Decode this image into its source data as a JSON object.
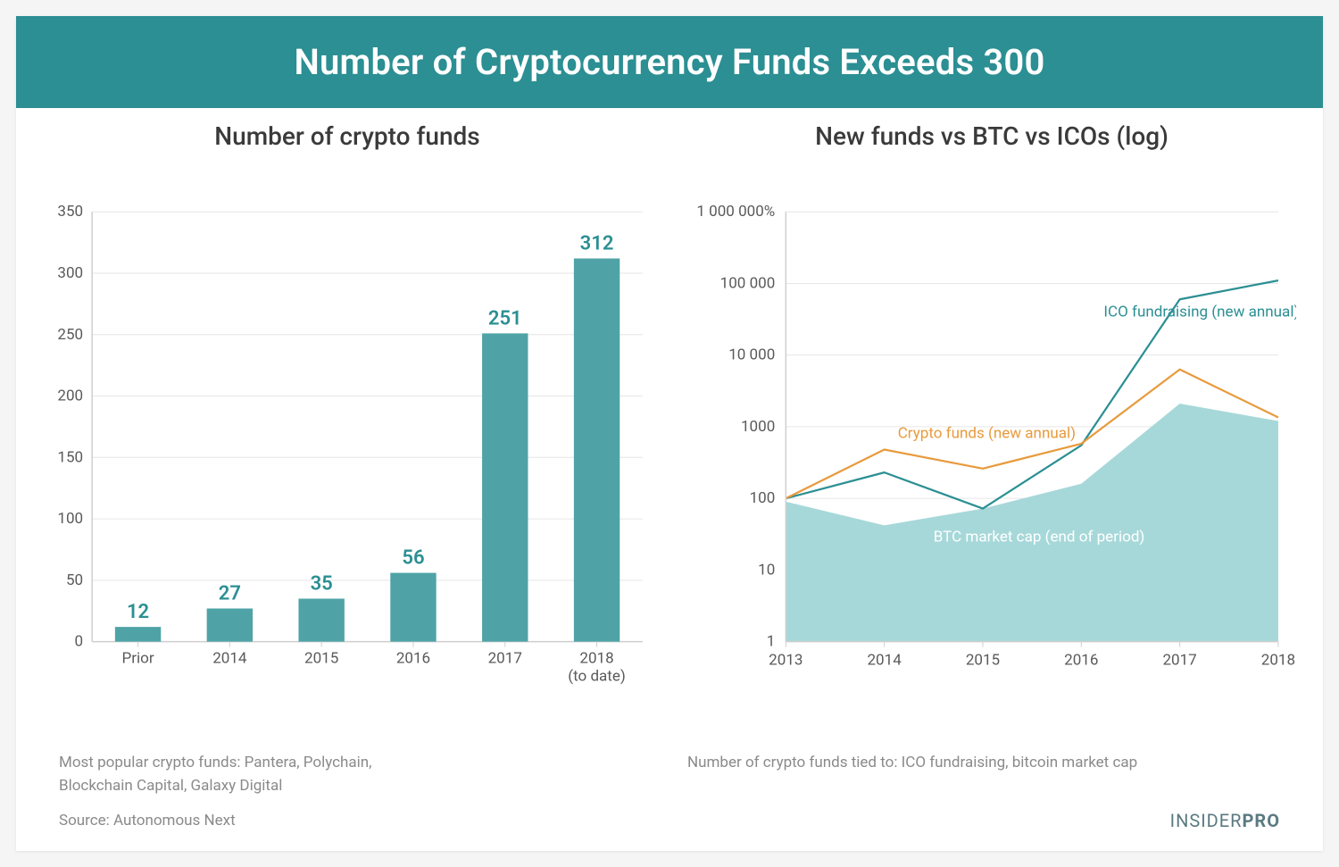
{
  "header": {
    "title": "Number of Cryptocurrency Funds Exceeds 300",
    "bg_color": "#2b8f93"
  },
  "bar_chart": {
    "title": "Number of crypto funds",
    "type": "bar",
    "categories": [
      "Prior",
      "2014",
      "2015",
      "2016",
      "2017",
      "2018\n(to date)"
    ],
    "values": [
      12,
      27,
      35,
      56,
      251,
      312
    ],
    "bar_color": "#4fa3a6",
    "value_label_color": "#2b8f93",
    "ylim": [
      0,
      350
    ],
    "ytick_step": 50,
    "axis_color": "#cfcfcf",
    "grid_color": "#e6e6e6",
    "tick_label_color": "#5a5a5a",
    "bar_width": 0.5,
    "title_fontsize": 28,
    "tick_fontsize": 17,
    "value_fontsize": 22
  },
  "line_chart": {
    "title": "New funds vs BTC vs ICOs (log)",
    "type": "line-log",
    "x_categories": [
      "2013",
      "2014",
      "2015",
      "2016",
      "2017",
      "2018"
    ],
    "y_ticks": [
      1,
      10,
      100,
      1000,
      10000,
      100000,
      1000000
    ],
    "y_tick_labels": [
      "1",
      "10",
      "100",
      "1000",
      "10 000",
      "100 000",
      "1 000 000%"
    ],
    "series": [
      {
        "name": "ICO fundraising (new annual)",
        "color": "#2b8f93",
        "values": [
          100,
          230,
          72,
          550,
          60000,
          110000
        ],
        "line_width": 2.2,
        "fill": false
      },
      {
        "name": "Crypto funds (new annual)",
        "color": "#e89a3c",
        "values": [
          100,
          480,
          260,
          580,
          6300,
          1350
        ],
        "line_width": 2.2,
        "fill": false
      },
      {
        "name": "BTC market cap (end of period)",
        "color": "#a7d8d9",
        "values": [
          90,
          42,
          72,
          160,
          2100,
          1200
        ],
        "line_width": 0,
        "fill": true,
        "label_color": "#ffffff"
      }
    ],
    "axis_color": "#cfcfcf",
    "grid_color": "#e6e6e6",
    "tick_label_color": "#5a5a5a",
    "title_fontsize": 28,
    "tick_fontsize": 17,
    "series_label_fontsize": 17
  },
  "captions": {
    "left": "Most popular crypto funds: Pantera, Polychain,\nBlockchain Capital, Galaxy Digital",
    "right": "Number of crypto funds tied to: ICO fundraising, bitcoin market cap"
  },
  "footer": {
    "source": "Source: Autonomous Next",
    "brand_prefix": "INSIDER",
    "brand_suffix": "PRO"
  }
}
